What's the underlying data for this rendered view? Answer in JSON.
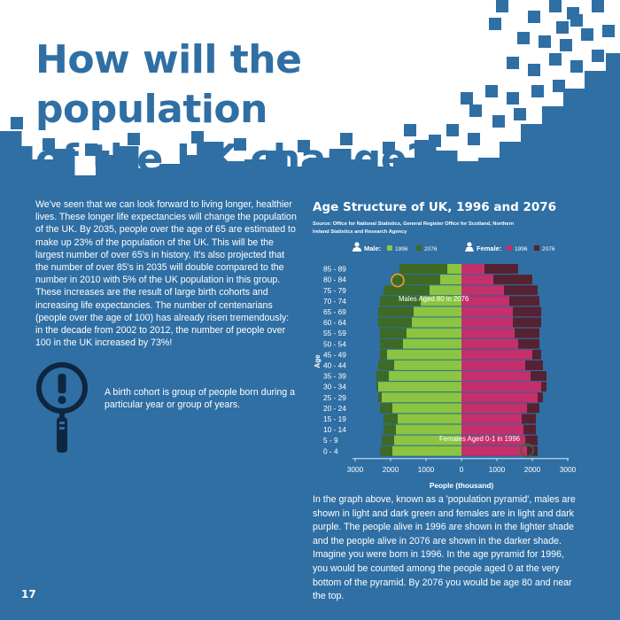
{
  "page": {
    "title_line1": "How will the population",
    "title_line2": "of the UK change?",
    "title_color": "#2f6fa4",
    "background_color": "#2f6fa4",
    "intro_text": "We've seen that we can look forward to living longer, healthier lives. These longer life expectancies will change the population of the UK. By 2035, people over the age of 65 are estimated to make up 23% of the population of the UK. This will be the largest number of over 65's in history. It's also projected that the number of over 85's in 2035 will double compared to the number in 2010 with 5% of the UK population in this group. These increases are the result of large birth cohorts and increasing life expectancies. The number of centenarians (people over the age of 100) has already risen tremendously: in the decade from 2002 to 2012, the number of people over 100 in the UK increased by 73%!",
    "cohort_note": "A birth cohort is group of people born during a particular year or group of years.",
    "cohort_icon": "magnifying-glass-exclamation-icon",
    "bottom_text": "In the graph above, known as a 'population pyramid', males are shown in light and dark green and females are in light and dark purple. The people alive in 1996 are shown in the lighter shade and the people alive in 2076 are shown in the darker shade. Imagine you were born in 1996. In the age pyramid for 1996, you would be counted among the people aged 0 at the very bottom of the pyramid. By 2076 you would be age 80 and near the top.",
    "page_number": "17"
  },
  "chart_data": {
    "type": "population-pyramid",
    "title": "Age Structure of UK, 1996 and 2076",
    "source": "Source: Office for National Statistics, General Register Office for Scotland, Northern Ireland Statistics and Research Agency",
    "xlabel": "People (thousand)",
    "ylabel": "Age",
    "xlim": [
      -3000,
      3000
    ],
    "x_ticks": [
      -3000,
      -2000,
      -1000,
      0,
      1000,
      2000,
      3000
    ],
    "x_tick_labels": [
      "3000",
      "2000",
      "1000",
      "0",
      "1000",
      "2000",
      "3000"
    ],
    "categories": [
      "0 - 4",
      "5 - 9",
      "10 - 14",
      "15 - 19",
      "20 - 24",
      "25 - 29",
      "30 - 34",
      "35 - 39",
      "40 - 44",
      "45 - 49",
      "50 - 54",
      "55 - 59",
      "60 - 64",
      "65 - 69",
      "70 - 74",
      "75 - 79",
      "80 - 84",
      "85 - 89"
    ],
    "legend": {
      "male_label": "Male:",
      "female_label": "Female:",
      "male_icon": "male-person-icon",
      "female_icon": "female-person-icon",
      "year_labels": [
        "1996",
        "2076"
      ]
    },
    "series": [
      {
        "name": "1996",
        "sex": "male",
        "color": "#8bc541",
        "values": [
          1950,
          1900,
          1850,
          1800,
          1950,
          2250,
          2350,
          2050,
          1900,
          2100,
          1650,
          1550,
          1400,
          1350,
          1150,
          900,
          600,
          400
        ]
      },
      {
        "name": "2076",
        "sex": "male",
        "color": "#3d6a25",
        "values": [
          2300,
          2250,
          2200,
          2200,
          2300,
          2350,
          2400,
          2400,
          2350,
          2300,
          2300,
          2300,
          2350,
          2350,
          2300,
          2200,
          1950,
          1750
        ]
      },
      {
        "name": "1996",
        "sex": "female",
        "color": "#c42f6c",
        "values": [
          1850,
          1800,
          1750,
          1700,
          1850,
          2150,
          2250,
          1950,
          1800,
          2000,
          1600,
          1500,
          1450,
          1450,
          1350,
          1200,
          900,
          650
        ]
      },
      {
        "name": "2076",
        "sex": "female",
        "color": "#552232",
        "values": [
          2150,
          2150,
          2100,
          2100,
          2200,
          2300,
          2400,
          2400,
          2300,
          2250,
          2200,
          2200,
          2250,
          2250,
          2200,
          2150,
          2000,
          1600
        ]
      }
    ],
    "annotations": [
      {
        "text": "Males Aged 80 in 2076",
        "age_group": "80 - 84",
        "x": -1800,
        "marker_color": "#f0a020"
      },
      {
        "text": "Females Aged 0-1 in 1996",
        "age_group": "0 - 4",
        "x": 1850,
        "marker_color": "#3d6a25"
      }
    ]
  }
}
